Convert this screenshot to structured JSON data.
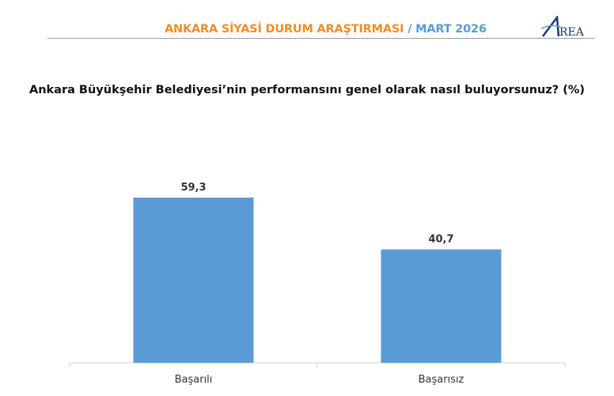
{
  "header": {
    "title_main": "ANKARA SİYASİ DURUM ARAŞTIRMASI",
    "title_sep": " / ",
    "title_date": "MART 2026",
    "logo_text": "AREA"
  },
  "colors": {
    "orange": "#f28c28",
    "blue": "#5b9bd5",
    "bar": "#5b9bd5"
  },
  "chart_data": {
    "type": "bar",
    "title": "Ankara Büyükşehir Belediyesi’nin performansını genel olarak nasıl buluyorsunuz? (%)",
    "categories": [
      "Başarılı",
      "Başarısız"
    ],
    "values": [
      59.3,
      40.7
    ],
    "value_labels": [
      "59,3",
      "40,7"
    ],
    "xlabel": "",
    "ylabel": "",
    "ylim": [
      0,
      70
    ],
    "grid": false,
    "legend": "none"
  }
}
